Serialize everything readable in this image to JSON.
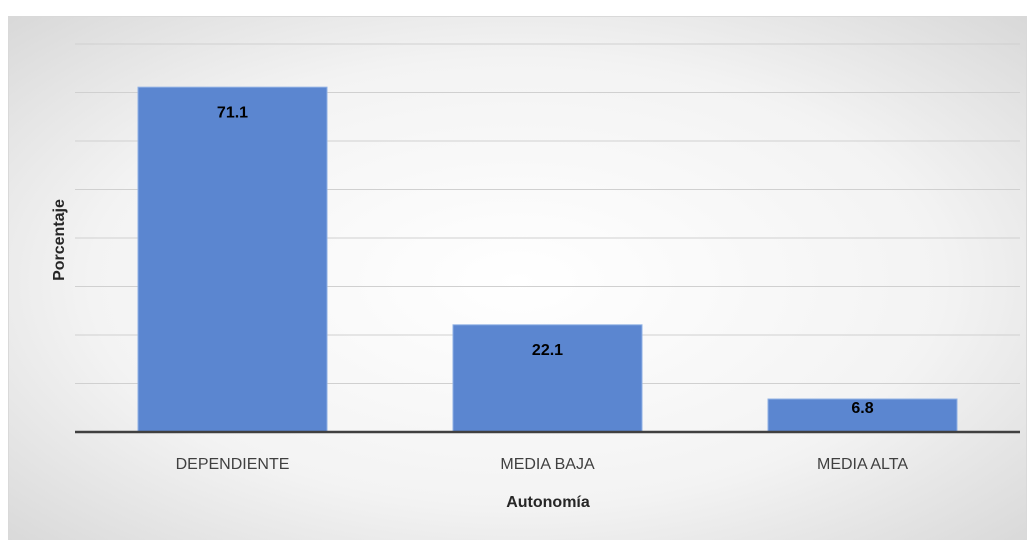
{
  "chart_data": {
    "type": "bar",
    "categories": [
      "DEPENDIENTE",
      "MEDIA BAJA",
      "MEDIA ALTA"
    ],
    "values": [
      71.1,
      22.1,
      6.8
    ],
    "color": "#5b86d0",
    "xlabel": "Autonomía",
    "ylabel": "Porcentaje",
    "ylim": [
      0,
      80
    ],
    "yticks": [
      0,
      10,
      20,
      30,
      40,
      50,
      60,
      70,
      80
    ],
    "grid": true
  }
}
